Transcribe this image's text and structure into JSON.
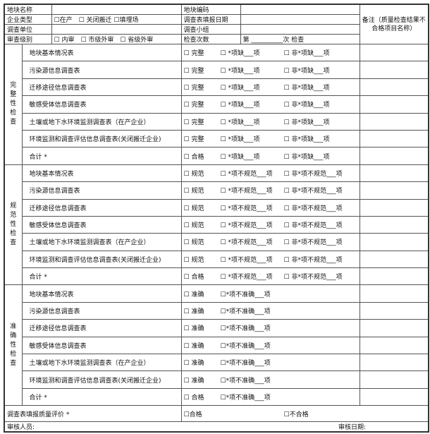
{
  "header": {
    "site_name_label": "地块名称",
    "site_code_label": "地块编码",
    "enterprise_type_label": "企业类型",
    "enterprise_type_options": "☐在产　☐ 关闭搬迁 ☐填埋场",
    "fill_date_label": "调查表填报日期",
    "survey_unit_label": "调查单位",
    "survey_team_label": "调查小组",
    "review_level_label": "审查级别",
    "review_level_options": "☐ 内审　☐ 市级外审　☐ 省级外审",
    "check_count_label": "检查次数",
    "check_count_value": "第 __________次 检查",
    "note_label": "备注（质量检查结果不合格项目名称）"
  },
  "sections": [
    {
      "label": "完整性检查",
      "rows": [
        {
          "item": "地块基本情况表",
          "options": [
            "☐ 完整",
            "☐ *项缺___项",
            "☐ 非*项缺___项"
          ]
        },
        {
          "item": "污染源信息调查表",
          "options": [
            "☐ 完整",
            "☐ *项缺___项",
            "☐ 非*项缺___项"
          ]
        },
        {
          "item": "迁移途径信息调查表",
          "options": [
            "☐ 完整",
            "☐ *项缺___项",
            "☐ 非*项缺___项"
          ]
        },
        {
          "item": "敏感受体信息调查表",
          "options": [
            "☐ 完整",
            "☐ *项缺___项",
            "☐ 非*项缺___项"
          ]
        },
        {
          "item": "土壤或地下水环境监测调查表（在产企业）",
          "options": [
            "☐ 完整",
            "☐ *项缺___项",
            "☐ 非*项缺___项"
          ]
        },
        {
          "item": "环境监测和调查评估信息调查表(关闭搬迁企业)",
          "options": [
            "☐ 完整",
            "☐ *项缺___项",
            "☐ 非*项缺___项"
          ]
        },
        {
          "item": "合计 *",
          "options": [
            "☐ 合格",
            "☐ *项缺___项",
            "☐ 非*项缺___项"
          ]
        }
      ]
    },
    {
      "label": "规范性检查",
      "rows": [
        {
          "item": "地块基本情况表",
          "options": [
            "☐ 规范",
            "☐ *项不规范___项",
            "☐ 非*项不规范___项"
          ]
        },
        {
          "item": "污染源信息调查表",
          "options": [
            "☐ 规范",
            "☐ *项不规范___项",
            "☐ 非*项不规范___项"
          ]
        },
        {
          "item": "迁移途径信息调查表",
          "options": [
            "☐ 规范",
            "☐ *项不规范___项",
            "☐ 非*项不规范___项"
          ]
        },
        {
          "item": "敏感受体信息调查表",
          "options": [
            "☐ 规范",
            "☐ *项不规范___项",
            "☐ 非*项不规范___项"
          ]
        },
        {
          "item": "土壤或地下水环境监测调查表（在产企业）",
          "options": [
            "☐ 规范",
            "☐ *项不规范___项",
            "☐ 非*项不规范___项"
          ]
        },
        {
          "item": "环境监测和调查评估信息调查表(关闭搬迁企业)",
          "options": [
            "☐ 规范",
            "☐ *项不规范___项",
            "☐ 非*项不规范___项"
          ]
        },
        {
          "item": "合计 *",
          "options": [
            "☐ 合格",
            "☐ *项不规范___项",
            "☐ 非*项不规范___项"
          ]
        }
      ]
    },
    {
      "label": "准确性检查",
      "rows": [
        {
          "item": "地块基本情况表",
          "options": [
            "☐ 准确",
            "☐*项不准确___项"
          ]
        },
        {
          "item": "污染源信息调查表",
          "options": [
            "☐ 准确",
            "☐*项不准确___项"
          ]
        },
        {
          "item": "迁移途径信息调查表",
          "options": [
            "☐ 准确",
            "☐*项不准确___项"
          ]
        },
        {
          "item": "敏感受体信息调查表",
          "options": [
            "☐ 准确",
            "☐*项不准确___项"
          ]
        },
        {
          "item": "土壤或地下水环境监测调查表（在产企业）",
          "options": [
            "☐ 准确",
            "☐*项不准确___项"
          ]
        },
        {
          "item": "环境监测和调查评估信息调查表(关闭搬迁企业)",
          "options": [
            "☐ 准确",
            "☐*项不准确___项"
          ]
        },
        {
          "item": "合计 *",
          "options": [
            "☐ 合格",
            "☐*项不准确___项"
          ]
        }
      ]
    }
  ],
  "evaluation": {
    "label": "调查表填报质量评价 *",
    "pass": "☐合格",
    "fail": "☐不合格"
  },
  "footer": {
    "reviewer_label": "审核人员:",
    "date_label": "审核日期:"
  }
}
